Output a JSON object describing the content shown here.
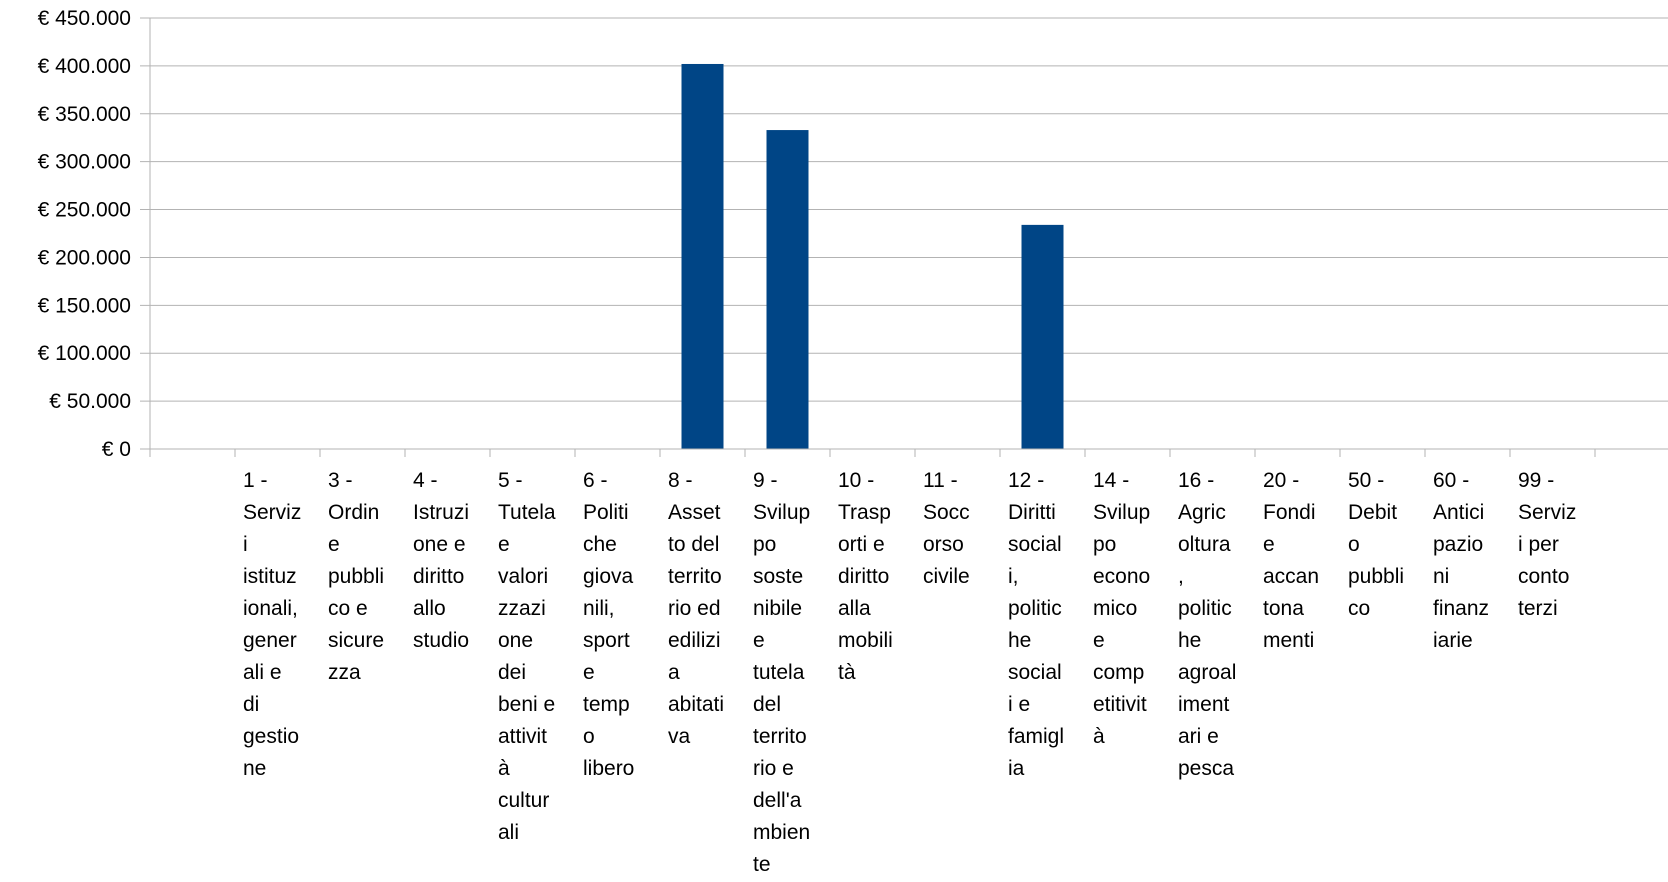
{
  "chart_data": {
    "type": "bar",
    "title": "",
    "xlabel": "",
    "ylabel": "",
    "ylim": [
      0,
      450000
    ],
    "grid": true,
    "legend": "none",
    "bar_color": "#004586",
    "y_ticks": [
      {
        "value": 0,
        "label": "€ 0"
      },
      {
        "value": 50000,
        "label": "€ 50.000"
      },
      {
        "value": 100000,
        "label": "€ 100.000"
      },
      {
        "value": 150000,
        "label": "€ 150.000"
      },
      {
        "value": 200000,
        "label": "€ 200.000"
      },
      {
        "value": 250000,
        "label": "€ 250.000"
      },
      {
        "value": 300000,
        "label": "€ 300.000"
      },
      {
        "value": 350000,
        "label": "€ 350.000"
      },
      {
        "value": 400000,
        "label": "€ 400.000"
      },
      {
        "value": 450000,
        "label": "€ 450.000"
      }
    ],
    "categories": [
      {
        "label": "",
        "lines": []
      },
      {
        "label": "1 - Servizi istituzionali, generali e di gestione",
        "lines": [
          "1 -",
          "Serviz",
          "i",
          "istituz",
          "ionali,",
          "gener",
          "ali e",
          "di",
          "gestio",
          "ne"
        ]
      },
      {
        "label": "3 - Ordine pubblico e sicurezza",
        "lines": [
          "3 -",
          "Ordin",
          "e",
          "pubbli",
          "co e",
          "sicure",
          "zza"
        ]
      },
      {
        "label": "4 - Istruzione e diritto allo studio",
        "lines": [
          "4 -",
          "Istruzi",
          "one e",
          "diritto",
          "allo",
          "studio"
        ]
      },
      {
        "label": "5 - Tutela e valorizzazione dei beni e attività culturali",
        "lines": [
          "5 -",
          "Tutela",
          "e",
          "valori",
          "zzazi",
          "one",
          "dei",
          "beni e",
          "attivit",
          "à",
          "cultur",
          "ali"
        ]
      },
      {
        "label": "6 - Politiche giovanili, sport e tempo libero",
        "lines": [
          "6 -",
          "Politi",
          "che",
          "giova",
          "nili,",
          "sport",
          "e",
          "temp",
          "o",
          "libero"
        ]
      },
      {
        "label": "8 - Assetto del territorio ed edilizia abitativa",
        "lines": [
          "8 -",
          "Asset",
          "to del",
          "territo",
          "rio ed",
          "edilizi",
          "a",
          "abitati",
          "va"
        ]
      },
      {
        "label": "9 - Sviluppo sostenibile e tutela del territorio e dell'ambiente",
        "lines": [
          "9 -",
          "Svilup",
          "po",
          "soste",
          "nibile",
          "e",
          "tutela",
          "del",
          "territo",
          "rio e",
          "dell'a",
          "mbien",
          "te"
        ]
      },
      {
        "label": "10 - Trasporti e diritto alla mobilità",
        "lines": [
          "10 -",
          "Trasp",
          "orti e",
          "diritto",
          "alla",
          "mobili",
          "tà"
        ]
      },
      {
        "label": "11 - Soccorso civile",
        "lines": [
          "11 -",
          "Socc",
          "orso",
          "civile"
        ]
      },
      {
        "label": "12 - Diritti sociali, politiche sociali e famiglia",
        "lines": [
          "12 -",
          "Diritti",
          "social",
          "i,",
          "politic",
          "he",
          "social",
          "i e",
          "famigl",
          "ia"
        ]
      },
      {
        "label": "14 - Sviluppo economico e competitività",
        "lines": [
          "14 -",
          "Svilup",
          "po",
          "econo",
          "mico",
          "e",
          "comp",
          "etitivit",
          "à"
        ]
      },
      {
        "label": "16 - Agricoltura, politiche agroalimentari e pesca",
        "lines": [
          "16 -",
          "Agric",
          "oltura",
          ",",
          "politic",
          "he",
          "agroal",
          "iment",
          "ari e",
          "pesca"
        ]
      },
      {
        "label": "20 - Fondi e accantonamenti",
        "lines": [
          "20 -",
          "Fondi",
          "e",
          "accan",
          "tona",
          "menti"
        ]
      },
      {
        "label": "50 - Debito pubblico",
        "lines": [
          "50 -",
          "Debit",
          "o",
          "pubbli",
          "co"
        ]
      },
      {
        "label": "60 - Anticipazioni finanziarie",
        "lines": [
          "60 -",
          "Antici",
          "pazio",
          "ni",
          "finanz",
          "iarie"
        ]
      },
      {
        "label": "99 - Servizi per conto terzi",
        "lines": [
          "99 -",
          "Serviz",
          "i per",
          "conto",
          "terzi"
        ]
      },
      {
        "label": "",
        "lines": []
      }
    ],
    "values": [
      0,
      0,
      0,
      0,
      0,
      0,
      402000,
      333000,
      0,
      0,
      234000,
      0,
      0,
      0,
      0,
      0,
      0,
      0
    ]
  }
}
